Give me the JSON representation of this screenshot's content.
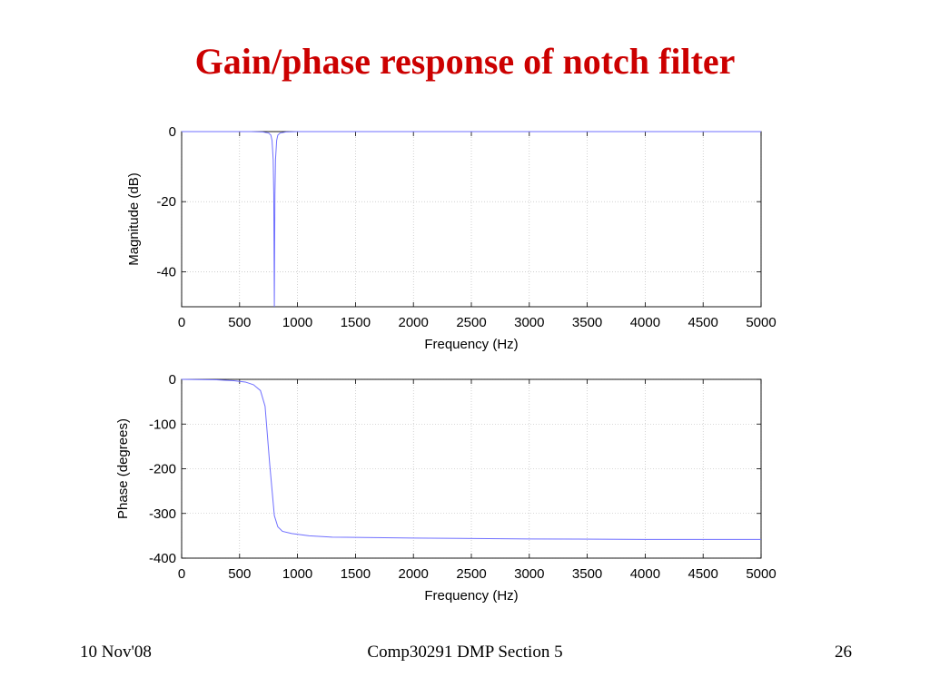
{
  "slide": {
    "title": "Gain/phase response of notch filter",
    "footer_left": "10 Nov'08",
    "footer_center": "Comp30291 DMP Section 5",
    "page_number": "26"
  },
  "colors": {
    "title": "#cc0000",
    "trace": "#6f6fff",
    "grid": "#b3b3b3"
  },
  "chart_data": [
    {
      "type": "line",
      "xlabel": "Frequency (Hz)",
      "ylabel": "Magnitude (dB)",
      "xlim": [
        0,
        5000
      ],
      "ylim": [
        -50,
        0
      ],
      "xticks": [
        0,
        500,
        1000,
        1500,
        2000,
        2500,
        3000,
        3500,
        4000,
        4500,
        5000
      ],
      "xtick_labels": [
        "0",
        "500",
        "1000",
        "1500",
        "2000",
        "2500",
        "3000",
        "3500",
        "4000",
        "4500",
        "5000"
      ],
      "yticks": [
        0,
        -20,
        -40
      ],
      "ytick_labels": [
        "0",
        "-20",
        "-40"
      ],
      "grid": true,
      "series": [
        {
          "x": [
            0,
            500,
            600,
            700,
            750,
            770,
            780,
            790,
            795,
            800,
            805,
            810,
            820,
            830,
            850,
            900,
            1000,
            2000,
            3000,
            4000,
            5000
          ],
          "y": [
            0,
            0,
            0,
            -0.1,
            -0.4,
            -1,
            -2.5,
            -8,
            -18,
            -50,
            -18,
            -8,
            -2.5,
            -1,
            -0.4,
            -0.1,
            0,
            0,
            0,
            0,
            0
          ]
        }
      ]
    },
    {
      "type": "line",
      "xlabel": "Frequency (Hz)",
      "ylabel": "Phase (degrees)",
      "xlim": [
        0,
        5000
      ],
      "ylim": [
        -400,
        0
      ],
      "xticks": [
        0,
        500,
        1000,
        1500,
        2000,
        2500,
        3000,
        3500,
        4000,
        4500,
        5000
      ],
      "xtick_labels": [
        "0",
        "500",
        "1000",
        "1500",
        "2000",
        "2500",
        "3000",
        "3500",
        "4000",
        "4500",
        "5000"
      ],
      "yticks": [
        0,
        -100,
        -200,
        -300,
        -400
      ],
      "ytick_labels": [
        "0",
        "-100",
        "-200",
        "-300",
        "-400"
      ],
      "grid": true,
      "series": [
        {
          "x": [
            0,
            300,
            450,
            550,
            620,
            680,
            720,
            760,
            800,
            830,
            870,
            950,
            1100,
            1300,
            2000,
            3000,
            4000,
            5000
          ],
          "y": [
            0,
            -1,
            -3,
            -6,
            -12,
            -25,
            -60,
            -190,
            -305,
            -330,
            -340,
            -345,
            -350,
            -353,
            -355,
            -357,
            -358,
            -358
          ]
        }
      ]
    }
  ]
}
